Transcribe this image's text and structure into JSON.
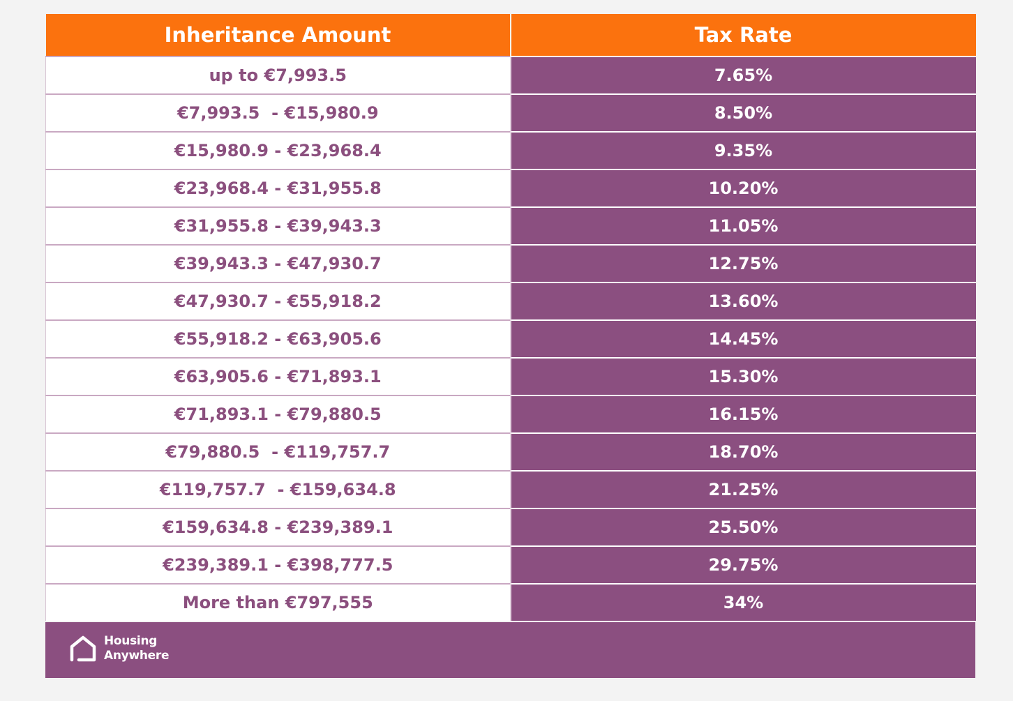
{
  "table": {
    "headers": {
      "amount": "Inheritance Amount",
      "rate": "Tax Rate"
    },
    "rows": [
      {
        "amount": "up to €7,993.5",
        "rate": "7.65%"
      },
      {
        "amount": "€7,993.5  - €15,980.9",
        "rate": "8.50%"
      },
      {
        "amount": "€15,980.9 - €23,968.4",
        "rate": "9.35%"
      },
      {
        "amount": "€23,968.4 - €31,955.8",
        "rate": "10.20%"
      },
      {
        "amount": "€31,955.8 - €39,943.3",
        "rate": "11.05%"
      },
      {
        "amount": "€39,943.3 - €47,930.7",
        "rate": "12.75%"
      },
      {
        "amount": "€47,930.7 - €55,918.2",
        "rate": "13.60%"
      },
      {
        "amount": "€55,918.2 - €63,905.6",
        "rate": "14.45%"
      },
      {
        "amount": "€63,905.6 - €71,893.1",
        "rate": "15.30%"
      },
      {
        "amount": "€71,893.1 - €79,880.5",
        "rate": "16.15%"
      },
      {
        "amount": "€79,880.5  - €119,757.7",
        "rate": "18.70%"
      },
      {
        "amount": "€119,757.7  - €159,634.8",
        "rate": "21.25%"
      },
      {
        "amount": "€159,634.8 - €239,389.1",
        "rate": "25.50%"
      },
      {
        "amount": "€239,389.1 - €398,777.5",
        "rate": "29.75%"
      },
      {
        "amount": "More than €797,555",
        "rate": "34%"
      }
    ]
  },
  "footer": {
    "logo_icon": "house-icon",
    "logo_line1": "Housing",
    "logo_line2": "Anywhere"
  },
  "colors": {
    "header_bg": "#fb720e",
    "purple": "#8b4f80",
    "amount_text": "#8b4f7e",
    "page_bg": "#f3f3f3"
  }
}
